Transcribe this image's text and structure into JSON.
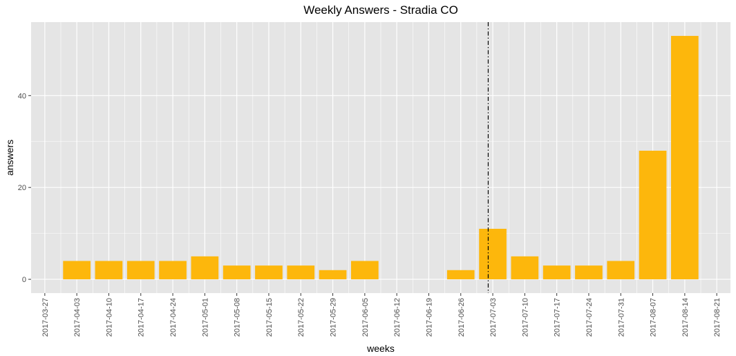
{
  "chart_data": {
    "type": "bar",
    "title": "Weekly Answers - Stradia CO",
    "xlabel": "weeks",
    "ylabel": "answers",
    "x_ticks": [
      "2017-03-27",
      "2017-04-03",
      "2017-04-10",
      "2017-04-17",
      "2017-04-24",
      "2017-05-01",
      "2017-05-08",
      "2017-05-15",
      "2017-05-22",
      "2017-05-29",
      "2017-06-05",
      "2017-06-12",
      "2017-06-19",
      "2017-06-26",
      "2017-07-03",
      "2017-07-10",
      "2017-07-17",
      "2017-07-24",
      "2017-07-31",
      "2017-08-07",
      "2017-08-14",
      "2017-08-21"
    ],
    "categories": [
      "2017-04-03",
      "2017-04-10",
      "2017-04-17",
      "2017-04-24",
      "2017-05-01",
      "2017-05-08",
      "2017-05-15",
      "2017-05-22",
      "2017-05-29",
      "2017-06-05",
      "2017-06-26",
      "2017-07-03",
      "2017-07-10",
      "2017-07-17",
      "2017-07-24",
      "2017-07-31",
      "2017-08-07",
      "2017-08-14"
    ],
    "values": [
      4,
      4,
      4,
      4,
      5,
      3,
      3,
      3,
      2,
      4,
      2,
      11,
      5,
      3,
      3,
      4,
      28,
      53
    ],
    "y_ticks": [
      0,
      20,
      40
    ],
    "ylim": [
      -3,
      56
    ],
    "xlim": [
      "2017-03-24",
      "2017-08-24"
    ],
    "vline": "2017-07-02",
    "grid": true,
    "bar_color": "#FDB70C",
    "panel_color": "#E5E5E5",
    "grid_color": "#FFFFFF"
  }
}
